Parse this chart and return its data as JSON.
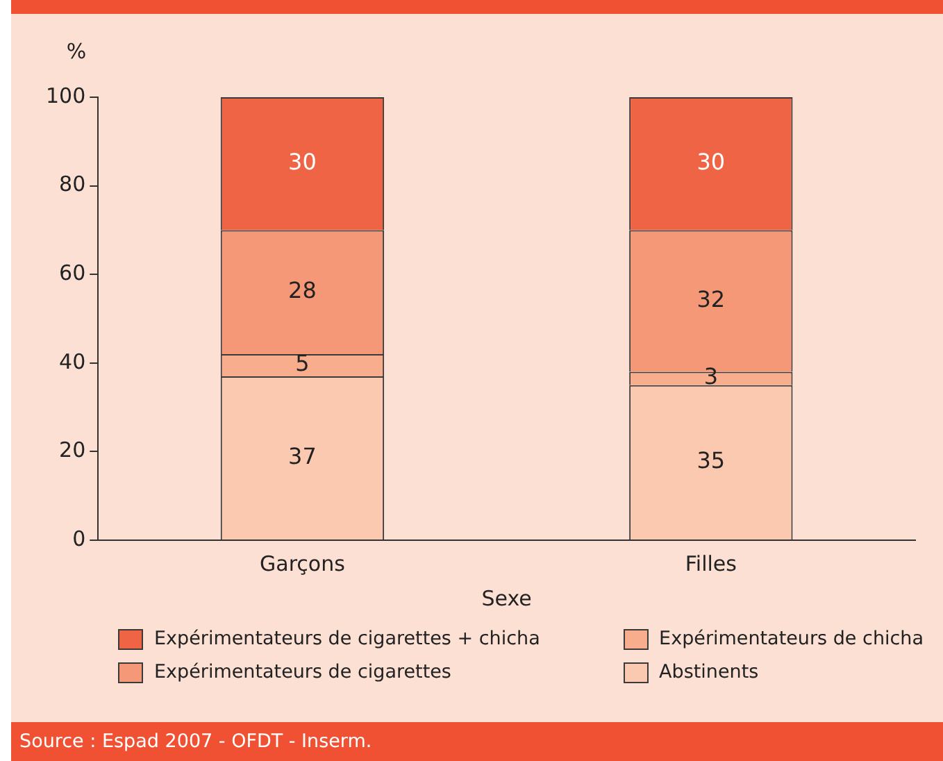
{
  "chart_data": {
    "type": "bar",
    "stacked": true,
    "ylabel": "%",
    "xlabel": "Sexe",
    "categories": [
      "Garçons",
      "Filles"
    ],
    "series": [
      {
        "name": "Abstinents",
        "color": "#fbc8b0",
        "values": [
          37,
          35
        ]
      },
      {
        "name": "Expérimentateurs de chicha",
        "color": "#f8ad8c",
        "values": [
          5,
          3
        ]
      },
      {
        "name": "Expérimentateurs de cigarettes",
        "color": "#f59877",
        "values": [
          28,
          32
        ]
      },
      {
        "name": "Expérimentateurs de cigarettes + chicha",
        "color": "#ef6444",
        "values": [
          30,
          30
        ]
      }
    ],
    "ylim": [
      0,
      100
    ],
    "yticks": [
      0,
      20,
      40,
      60,
      80,
      100
    ],
    "data_labels": true,
    "legend": "bottom",
    "grid": false,
    "annotations": [
      "Source : Espad 2007 - OFDT - Inserm."
    ]
  }
}
